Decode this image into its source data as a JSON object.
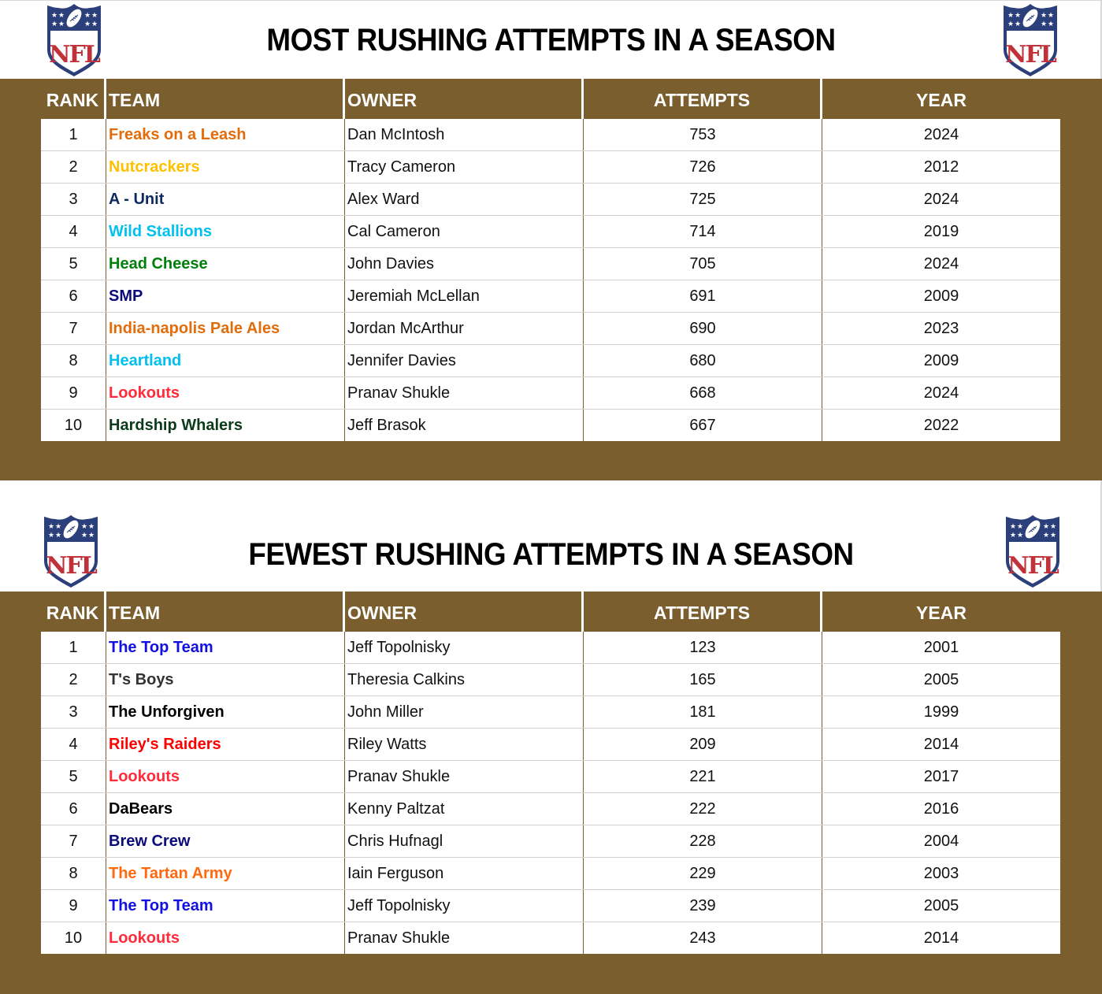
{
  "colors": {
    "band": "#7b5e2e",
    "header_text": "#ffffff",
    "title_text": "#000000"
  },
  "columns": {
    "rank": "RANK",
    "team": "TEAM",
    "owner": "OWNER",
    "attempts": "ATTEMPTS",
    "year": "YEAR"
  },
  "logo": {
    "icon": "nfl-shield-logo",
    "text": "NFL"
  },
  "most": {
    "title": "MOST RUSHING ATTEMPTS IN A SEASON",
    "rows": [
      {
        "rank": "1",
        "team": "Freaks on a Leash",
        "team_color": "#e36c0a",
        "owner": "Dan McIntosh",
        "attempts": "753",
        "year": "2024"
      },
      {
        "rank": "2",
        "team": "Nutcrackers",
        "team_color": "#ffc000",
        "owner": "Tracy Cameron",
        "attempts": "726",
        "year": "2012"
      },
      {
        "rank": "3",
        "team": "A - Unit",
        "team_color": "#0f2a5e",
        "owner": "Alex Ward",
        "attempts": "725",
        "year": "2024"
      },
      {
        "rank": "4",
        "team": "Wild Stallions",
        "team_color": "#00c0f0",
        "owner": "Cal Cameron",
        "attempts": "714",
        "year": "2019"
      },
      {
        "rank": "5",
        "team": "Head Cheese",
        "team_color": "#00800a",
        "owner": "John Davies",
        "attempts": "705",
        "year": "2024"
      },
      {
        "rank": "6",
        "team": "SMP",
        "team_color": "#0a0a7a",
        "owner": "Jeremiah McLellan",
        "attempts": "691",
        "year": "2009"
      },
      {
        "rank": "7",
        "team": "India-napolis Pale Ales",
        "team_color": "#e36c0a",
        "owner": "Jordan McArthur",
        "attempts": "690",
        "year": "2023"
      },
      {
        "rank": "8",
        "team": "Heartland",
        "team_color": "#00c0f0",
        "owner": "Jennifer Davies",
        "attempts": "680",
        "year": "2009"
      },
      {
        "rank": "9",
        "team": "Lookouts",
        "team_color": "#ff2a3a",
        "owner": "Pranav Shukle",
        "attempts": "668",
        "year": "2024"
      },
      {
        "rank": "10",
        "team": "Hardship Whalers",
        "team_color": "#0a3a1a",
        "owner": "Jeff Brasok",
        "attempts": "667",
        "year": "2022"
      }
    ]
  },
  "fewest": {
    "title": "FEWEST RUSHING ATTEMPTS IN A SEASON",
    "rows": [
      {
        "rank": "1",
        "team": "The Top Team",
        "team_color": "#1010e0",
        "owner": "Jeff Topolnisky",
        "attempts": "123",
        "year": "2001"
      },
      {
        "rank": "2",
        "team": "T's Boys",
        "team_color": "#333333",
        "owner": "Theresia Calkins",
        "attempts": "165",
        "year": "2005"
      },
      {
        "rank": "3",
        "team": "The Unforgiven",
        "team_color": "#000000",
        "owner": "John Miller",
        "attempts": "181",
        "year": "1999"
      },
      {
        "rank": "4",
        "team": "Riley's Raiders",
        "team_color": "#ff0000",
        "owner": "Riley Watts",
        "attempts": "209",
        "year": "2014"
      },
      {
        "rank": "5",
        "team": "Lookouts",
        "team_color": "#ff2a3a",
        "owner": "Pranav Shukle",
        "attempts": "221",
        "year": "2017"
      },
      {
        "rank": "6",
        "team": "DaBears",
        "team_color": "#000000",
        "owner": "Kenny Paltzat",
        "attempts": "222",
        "year": "2016"
      },
      {
        "rank": "7",
        "team": "Brew Crew",
        "team_color": "#0a0a7a",
        "owner": "Chris Hufnagl",
        "attempts": "228",
        "year": "2004"
      },
      {
        "rank": "8",
        "team": "The Tartan Army",
        "team_color": "#ff6a10",
        "owner": "Iain Ferguson",
        "attempts": "229",
        "year": "2003"
      },
      {
        "rank": "9",
        "team": "The Top Team",
        "team_color": "#1010e0",
        "owner": "Jeff Topolnisky",
        "attempts": "239",
        "year": "2005"
      },
      {
        "rank": "10",
        "team": "Lookouts",
        "team_color": "#ff2a3a",
        "owner": "Pranav Shukle",
        "attempts": "243",
        "year": "2014"
      }
    ]
  }
}
